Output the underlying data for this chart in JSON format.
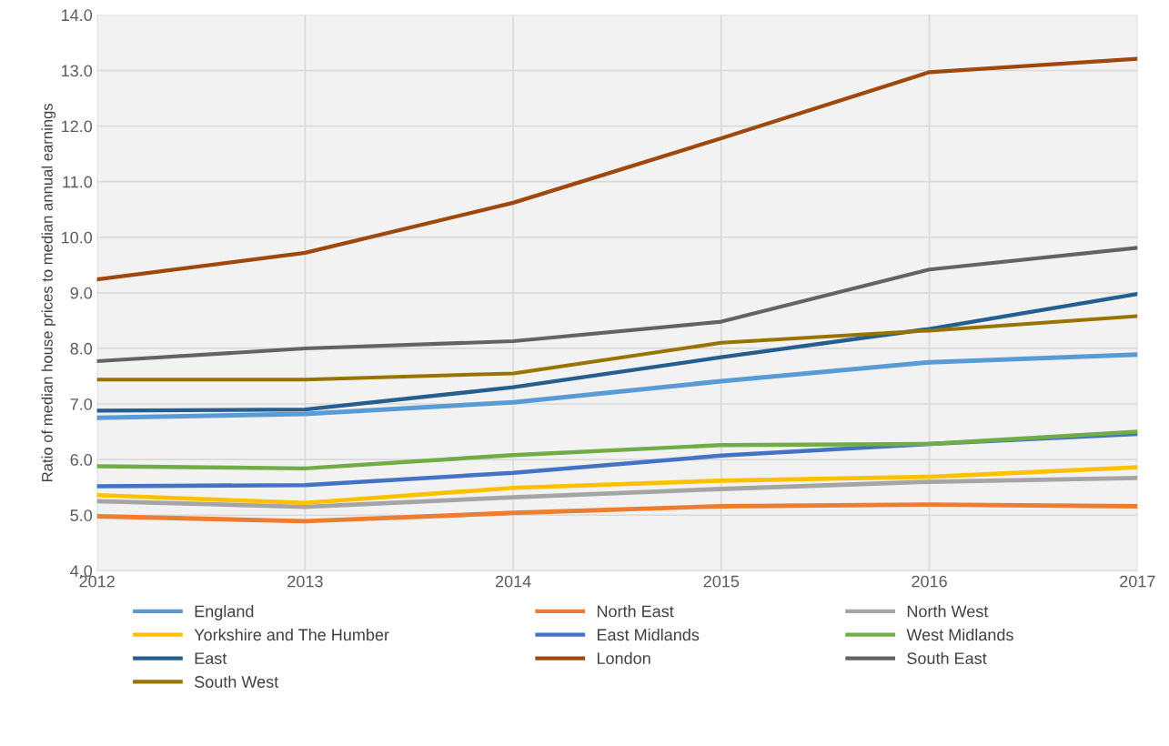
{
  "chart_data": {
    "type": "line",
    "ylabel": "Ratio of median house prices to median annual earnings",
    "x": [
      2012,
      2013,
      2014,
      2015,
      2016,
      2017
    ],
    "xlim": [
      2012,
      2017
    ],
    "xticks": [
      2012,
      2013,
      2014,
      2015,
      2016,
      2017
    ],
    "ylim": [
      4.0,
      14.0
    ],
    "yticks": [
      {
        "value": 4,
        "label": "4.0"
      },
      {
        "value": 5,
        "label": "5.0"
      },
      {
        "value": 6,
        "label": "6.0"
      },
      {
        "value": 7,
        "label": "7.0"
      },
      {
        "value": 8,
        "label": "8.0"
      },
      {
        "value": 9,
        "label": "9.0"
      },
      {
        "value": 10,
        "label": "10.0"
      },
      {
        "value": 11,
        "label": "11.0"
      },
      {
        "value": 12,
        "label": "12.0"
      },
      {
        "value": 13,
        "label": "13.0"
      },
      {
        "value": 14,
        "label": "14.0"
      }
    ],
    "grid": true,
    "legend": "bottom",
    "marker": "none",
    "line_style": "solid",
    "series": [
      {
        "name": "England",
        "color": "#5b9bd5",
        "values": [
          6.75,
          6.82,
          7.03,
          7.41,
          7.75,
          7.89
        ]
      },
      {
        "name": "North East",
        "color": "#ed7d31",
        "values": [
          4.98,
          4.89,
          5.04,
          5.16,
          5.19,
          5.16
        ]
      },
      {
        "name": "North West",
        "color": "#a5a5a5",
        "values": [
          5.25,
          5.15,
          5.32,
          5.47,
          5.6,
          5.67
        ]
      },
      {
        "name": "Yorkshire and The Humber",
        "color": "#ffc000",
        "values": [
          5.36,
          5.22,
          5.49,
          5.62,
          5.69,
          5.86
        ]
      },
      {
        "name": "East Midlands",
        "color": "#4472c4",
        "values": [
          5.52,
          5.54,
          5.76,
          6.07,
          6.28,
          6.46
        ]
      },
      {
        "name": "West Midlands",
        "color": "#70ad47",
        "values": [
          5.88,
          5.84,
          6.08,
          6.26,
          6.28,
          6.5
        ]
      },
      {
        "name": "East",
        "color": "#255e91",
        "values": [
          6.88,
          6.9,
          7.3,
          7.84,
          8.35,
          8.98
        ]
      },
      {
        "name": "London",
        "color": "#9e480e",
        "values": [
          9.24,
          9.72,
          10.62,
          11.78,
          12.97,
          13.21
        ]
      },
      {
        "name": "South East",
        "color": "#636363",
        "values": [
          7.77,
          8.0,
          8.13,
          8.48,
          9.42,
          9.81
        ]
      },
      {
        "name": "South West",
        "color": "#997300",
        "values": [
          7.44,
          7.44,
          7.55,
          8.1,
          8.32,
          8.58
        ]
      }
    ]
  }
}
